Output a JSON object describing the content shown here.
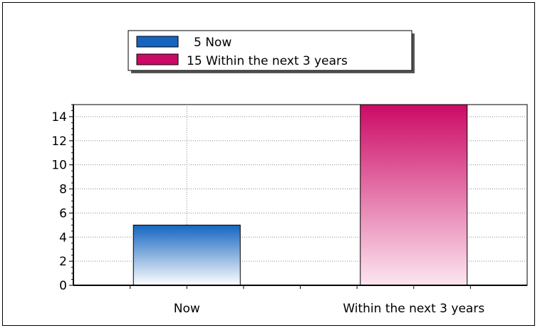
{
  "chart_data": {
    "type": "bar",
    "categories": [
      "Now",
      "Within the next 3 years"
    ],
    "values": [
      5,
      15
    ],
    "series": [
      {
        "name": "Now",
        "value": 5,
        "color": "#1565c0",
        "legend_label": "5 Now"
      },
      {
        "name": "Within the next 3 years",
        "value": 15,
        "color": "#cc0a66",
        "legend_label": "15 Within the next 3 years"
      }
    ],
    "ylim": [
      0,
      15
    ],
    "yticks": [
      0,
      2,
      4,
      6,
      8,
      10,
      12,
      14
    ],
    "ytick_labels": [
      "0",
      "2",
      "4",
      "6",
      "8",
      "10",
      "12",
      "14"
    ],
    "grid": true,
    "legend_position": "top"
  }
}
